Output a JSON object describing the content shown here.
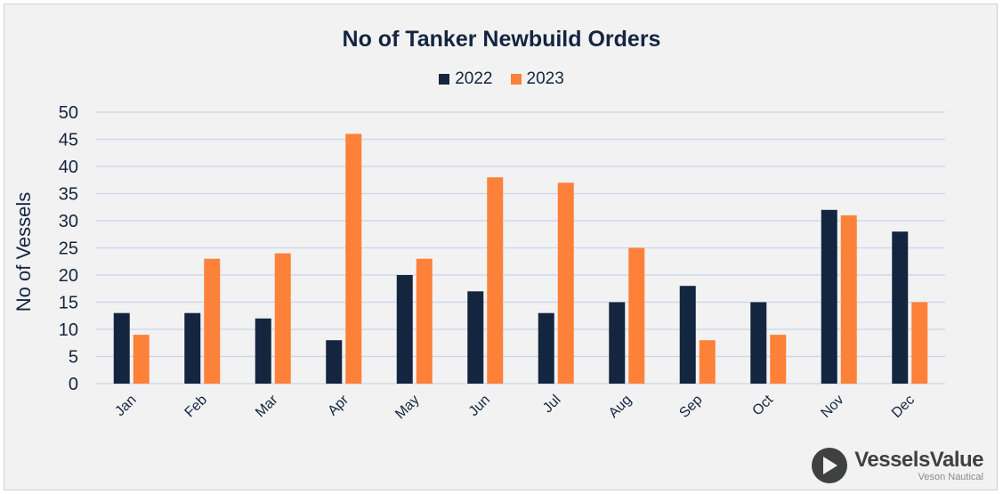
{
  "chart_data": {
    "type": "bar",
    "title": "No of Tanker Newbuild Orders",
    "ylabel": "No of Vessels",
    "xlabel": "",
    "categories": [
      "Jan",
      "Feb",
      "Mar",
      "Apr",
      "May",
      "Jun",
      "Jul",
      "Aug",
      "Sep",
      "Oct",
      "Nov",
      "Dec"
    ],
    "series": [
      {
        "name": "2022",
        "color": "#14253f",
        "values": [
          13,
          13,
          12,
          8,
          20,
          17,
          13,
          15,
          18,
          15,
          32,
          28
        ]
      },
      {
        "name": "2023",
        "color": "#fd8139",
        "values": [
          9,
          23,
          24,
          46,
          23,
          38,
          37,
          25,
          8,
          9,
          31,
          15
        ]
      }
    ],
    "ylim": [
      0,
      50
    ],
    "yticks": [
      0,
      5,
      10,
      15,
      20,
      25,
      30,
      35,
      40,
      45,
      50
    ],
    "grid": true,
    "legend_position": "top"
  },
  "logo": {
    "name": "VesselsValue",
    "subtitle": "Veson Nautical"
  }
}
